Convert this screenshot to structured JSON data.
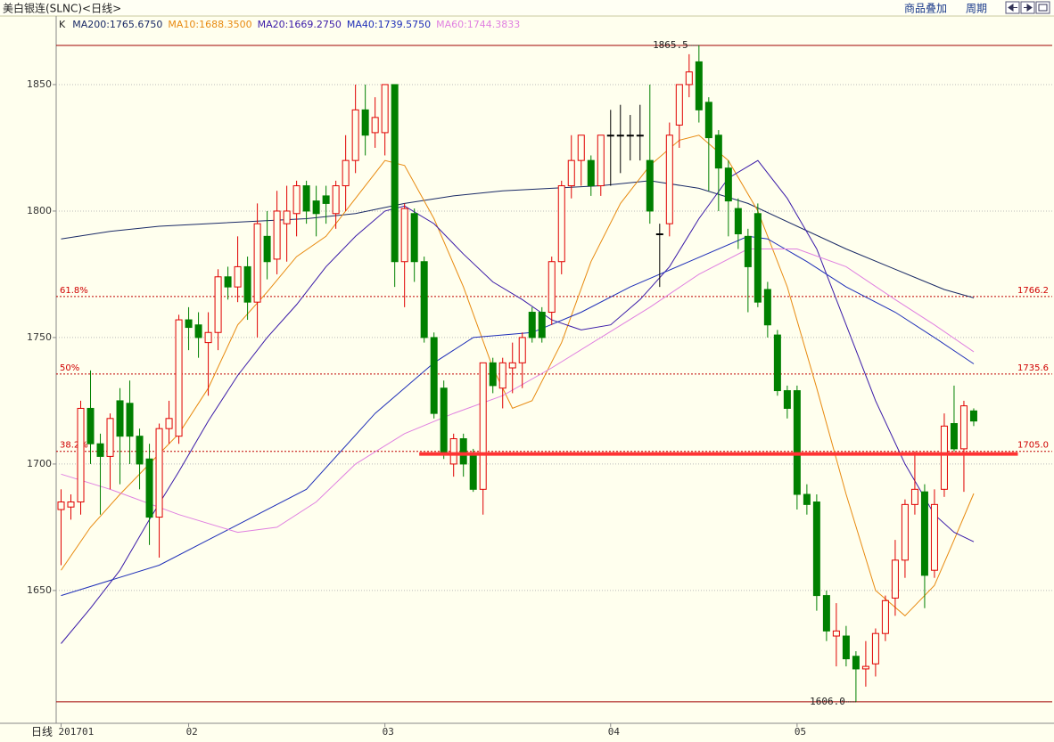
{
  "header": {
    "title": "美白银连(SLNC)<日线>",
    "menu": [
      "商品叠加",
      "周期"
    ]
  },
  "chart_data": {
    "type": "candlestick",
    "legend_head": "K",
    "period_label": "日线",
    "xlim": [
      -0.5,
      101
    ],
    "ylim": [
      1597.5,
      1877.1
    ],
    "yticks": [
      1650,
      1700,
      1750,
      1800,
      1850
    ],
    "grid": true,
    "xticks": [
      {
        "value": 0,
        "label": "201701"
      },
      {
        "value": 13,
        "label": "02"
      },
      {
        "value": 33,
        "label": "03"
      },
      {
        "value": 56,
        "label": "04"
      },
      {
        "value": 75,
        "label": "05"
      }
    ],
    "up_color": "#e00000",
    "down_color": "#008000",
    "flat_color": "#000000",
    "open": [
      1682,
      1683,
      1685,
      1722,
      1708,
      1703,
      1725,
      1724,
      1711,
      1702,
      1679,
      1714,
      1711,
      1757,
      1755,
      1748,
      1752,
      1774,
      1770,
      1778,
      1764,
      1790,
      1781,
      1795,
      1799,
      1810,
      1804,
      1806,
      1799,
      1810,
      1820,
      1840,
      1831,
      1831,
      1850,
      1780,
      1799,
      1780,
      1750,
      1730,
      1700,
      1710,
      1704,
      1690,
      1740,
      1730,
      1738,
      1740,
      1760,
      1760,
      1760,
      1780,
      1810,
      1820,
      1820,
      1810,
      1830,
      1830,
      1830,
      1830,
      1820,
      1791,
      1795,
      1834,
      1850,
      1859,
      1843,
      1830,
      1817,
      1801,
      1790,
      1799,
      1769,
      1751,
      1729,
      1729,
      1688,
      1685,
      1648,
      1632,
      1632,
      1624,
      1619,
      1621,
      1633,
      1647,
      1662,
      1684,
      1689,
      1658,
      1690,
      1716,
      1706,
      1721
    ],
    "high": [
      1690,
      1688,
      1725,
      1737,
      1712,
      1720,
      1730,
      1733,
      1714,
      1708,
      1716,
      1725,
      1759,
      1762,
      1760,
      1760,
      1777,
      1778,
      1790,
      1782,
      1803,
      1800,
      1808,
      1810,
      1812,
      1812,
      1810,
      1810,
      1812,
      1830,
      1850,
      1850,
      1845,
      1850,
      1850,
      1803,
      1801,
      1782,
      1752,
      1733,
      1712,
      1712,
      1706,
      1740,
      1742,
      1742,
      1748,
      1752,
      1762,
      1762,
      1782,
      1812,
      1830,
      1830,
      1822,
      1830,
      1840,
      1842,
      1838,
      1842,
      1850,
      1795,
      1835,
      1850,
      1862,
      1865.5,
      1845,
      1832,
      1820,
      1805,
      1793,
      1803,
      1772,
      1753,
      1731,
      1731,
      1692,
      1688,
      1650,
      1645,
      1636,
      1626,
      1630,
      1635,
      1648,
      1670,
      1686,
      1705,
      1692,
      1690,
      1720,
      1731,
      1725,
      1722
    ],
    "low": [
      1660,
      1678,
      1680,
      1700,
      1680,
      1690,
      1692,
      1700,
      1690,
      1668,
      1663,
      1708,
      1708,
      1745,
      1742,
      1727,
      1745,
      1765,
      1764,
      1757,
      1750,
      1773,
      1775,
      1780,
      1790,
      1795,
      1790,
      1795,
      1793,
      1800,
      1815,
      1822,
      1825,
      1822,
      1770,
      1762,
      1772,
      1748,
      1718,
      1702,
      1695,
      1695,
      1689,
      1680,
      1728,
      1722,
      1728,
      1730,
      1748,
      1748,
      1755,
      1775,
      1805,
      1810,
      1806,
      1806,
      1810,
      1815,
      1820,
      1820,
      1795,
      1770,
      1790,
      1825,
      1845,
      1835,
      1808,
      1800,
      1790,
      1785,
      1760,
      1762,
      1750,
      1727,
      1718,
      1682,
      1680,
      1642,
      1630,
      1620,
      1620,
      1606,
      1612,
      1616,
      1630,
      1640,
      1655,
      1680,
      1643,
      1655,
      1687,
      1705,
      1689,
      1715
    ],
    "close": [
      1685,
      1685,
      1722,
      1708,
      1703,
      1718,
      1711,
      1711,
      1700,
      1679,
      1714,
      1718,
      1757,
      1754,
      1750,
      1752,
      1774,
      1770,
      1778,
      1764,
      1795,
      1780,
      1800,
      1800,
      1810,
      1800,
      1799,
      1803,
      1810,
      1820,
      1840,
      1830,
      1837,
      1850,
      1780,
      1801,
      1780,
      1750,
      1720,
      1704,
      1710,
      1700,
      1690,
      1740,
      1731,
      1740,
      1740,
      1750,
      1750,
      1750,
      1780,
      1810,
      1820,
      1830,
      1810,
      1830,
      1830,
      1830,
      1830,
      1830,
      1800,
      1791,
      1830,
      1850,
      1855,
      1840,
      1829,
      1817,
      1804,
      1791,
      1778,
      1764,
      1755,
      1729,
      1722,
      1688,
      1684,
      1648,
      1634,
      1634,
      1623,
      1619,
      1620,
      1633,
      1646,
      1662,
      1684,
      1690,
      1656,
      1684,
      1715,
      1706,
      1723,
      1717
    ],
    "series": [
      {
        "name": "MA200:1765.6750",
        "color": "#1a2a66",
        "x": [
          0,
          5,
          10,
          15,
          20,
          25,
          30,
          35,
          40,
          45,
          50,
          55,
          60,
          65,
          70,
          75,
          80,
          85,
          90,
          93
        ],
        "values": [
          1789,
          1792,
          1794,
          1795,
          1796,
          1797,
          1799,
          1803,
          1806,
          1808,
          1809,
          1810,
          1812,
          1809,
          1803,
          1794,
          1785,
          1777,
          1769,
          1765.675
        ]
      },
      {
        "name": "MA10:1688.3500",
        "color": "#e88a10",
        "x": [
          0,
          3,
          6,
          9,
          12,
          15,
          18,
          21,
          24,
          27,
          30,
          33,
          35,
          38,
          41,
          44,
          46,
          48,
          51,
          54,
          57,
          60,
          63,
          65,
          68,
          71,
          74,
          77,
          80,
          83,
          86,
          89,
          91,
          93
        ],
        "values": [
          1658,
          1675,
          1688,
          1700,
          1712,
          1730,
          1755,
          1768,
          1782,
          1790,
          1805,
          1820,
          1818,
          1797,
          1770,
          1738,
          1722,
          1725,
          1748,
          1780,
          1803,
          1818,
          1828,
          1830,
          1820,
          1800,
          1770,
          1730,
          1688,
          1650,
          1640,
          1652,
          1670,
          1688.35
        ]
      },
      {
        "name": "MA20:1669.2750",
        "color": "#3a1aa8",
        "x": [
          0,
          3,
          6,
          9,
          12,
          15,
          18,
          21,
          24,
          27,
          30,
          33,
          35,
          38,
          41,
          44,
          47,
          50,
          53,
          56,
          59,
          62,
          65,
          68,
          71,
          74,
          77,
          80,
          83,
          86,
          89,
          91,
          93
        ],
        "values": [
          1629,
          1643,
          1658,
          1678,
          1697,
          1717,
          1735,
          1750,
          1763,
          1778,
          1790,
          1800,
          1802,
          1795,
          1783,
          1772,
          1765,
          1757,
          1753,
          1755,
          1765,
          1778,
          1797,
          1813,
          1820,
          1805,
          1785,
          1755,
          1725,
          1700,
          1680,
          1673,
          1669.275
        ]
      },
      {
        "name": "MA40:1739.5750",
        "color": "#1f2fb8",
        "x": [
          0,
          10,
          15,
          25,
          32,
          38,
          42,
          48,
          53,
          58,
          64,
          70,
          72,
          76,
          80,
          85,
          89,
          93
        ],
        "values": [
          1648,
          1660,
          1670,
          1690,
          1720,
          1740,
          1750,
          1752,
          1760,
          1770,
          1780,
          1790,
          1789,
          1780,
          1770,
          1760,
          1750,
          1739.575
        ]
      },
      {
        "name": "MA60:1744.3833",
        "color": "#e080e0",
        "x": [
          0,
          5,
          12,
          18,
          22,
          26,
          30,
          35,
          40,
          45,
          50,
          55,
          60,
          65,
          70,
          75,
          80,
          85,
          89,
          93
        ],
        "values": [
          1696,
          1690,
          1680,
          1673,
          1675,
          1685,
          1700,
          1712,
          1720,
          1727,
          1738,
          1750,
          1762,
          1775,
          1785,
          1785,
          1778,
          1765,
          1755,
          1744.3833
        ]
      }
    ],
    "levels": [
      {
        "label": "61.8%",
        "value": 1766.2,
        "value_label": "1766.2"
      },
      {
        "label": "50%",
        "value": 1735.6,
        "value_label": "1735.6"
      },
      {
        "label": "38.2%",
        "value": 1705,
        "value_label": "1705.0"
      }
    ],
    "extremes": [
      {
        "text": "1865.5",
        "value": 1865.5,
        "index": 65
      },
      {
        "text": "1606.0",
        "value": 1606,
        "index": 81
      }
    ],
    "support": {
      "value": 1704,
      "x": [
        36.5,
        97.5
      ],
      "color": "#ff3333"
    }
  }
}
